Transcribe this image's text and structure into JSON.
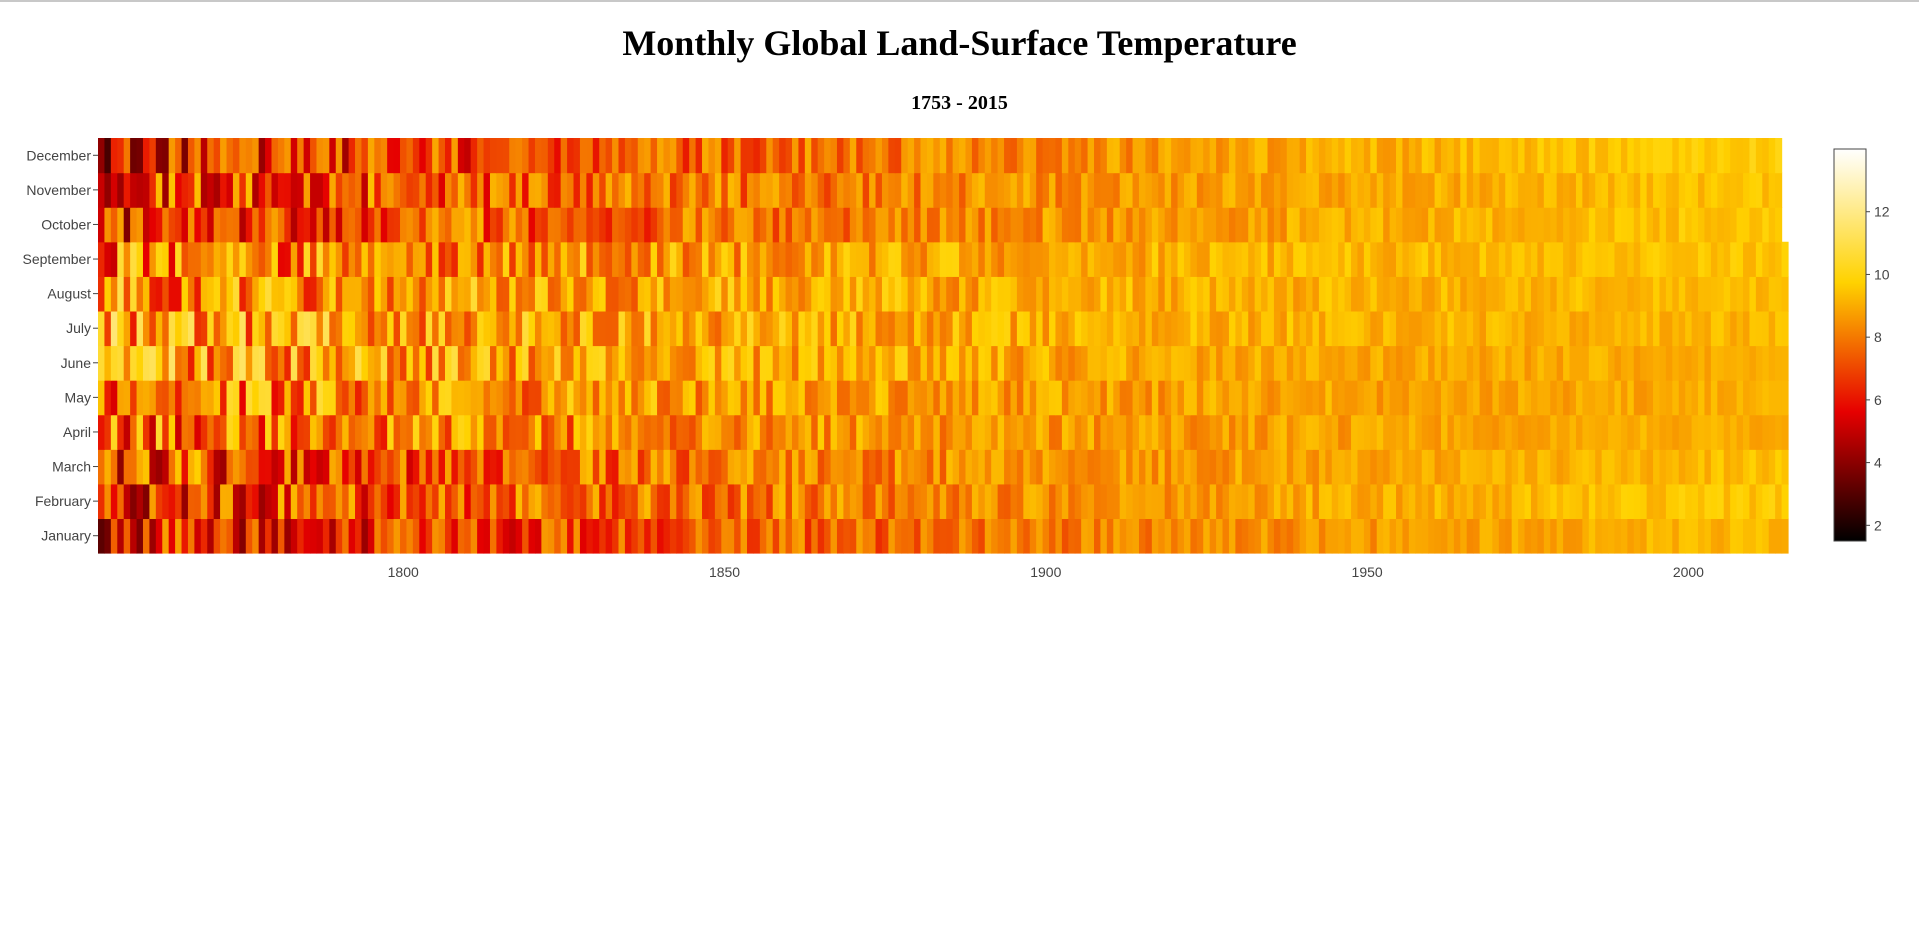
{
  "chart_data": {
    "type": "heatmap",
    "title": "Monthly Global Land-Surface Temperature",
    "subtitle": "1753 - 2015",
    "x_range": [
      1753,
      2015
    ],
    "x_ticks": [
      1800,
      1850,
      1900,
      1950,
      2000
    ],
    "y_categories": [
      "January",
      "February",
      "March",
      "April",
      "May",
      "June",
      "July",
      "August",
      "September",
      "October",
      "November",
      "December"
    ],
    "colorscale": [
      {
        "stop": 0.0,
        "color": "#000000"
      },
      {
        "stop": 0.33,
        "color": "#e60000"
      },
      {
        "stop": 0.66,
        "color": "#ffd200"
      },
      {
        "stop": 1.0,
        "color": "#ffffff"
      }
    ],
    "color_range": [
      1.5,
      14.0
    ],
    "colorbar_ticks": [
      2,
      4,
      6,
      8,
      10,
      12
    ],
    "data_end": {
      "September": 2015,
      "October": 2014,
      "November": 2014,
      "December": 2014
    },
    "monthly_profile": {
      "January": {
        "early": 5.6,
        "late": 9.3
      },
      "February": {
        "early": 6.3,
        "late": 9.6
      },
      "March": {
        "early": 6.6,
        "late": 9.4
      },
      "April": {
        "early": 7.6,
        "late": 9.1
      },
      "May": {
        "early": 8.1,
        "late": 9.0
      },
      "June": {
        "early": 8.8,
        "late": 9.0
      },
      "July": {
        "early": 8.7,
        "late": 9.2
      },
      "August": {
        "early": 8.4,
        "late": 9.3
      },
      "September": {
        "early": 7.9,
        "late": 9.5
      },
      "October": {
        "early": 6.3,
        "late": 9.6
      },
      "November": {
        "early": 6.4,
        "late": 9.5
      },
      "December": {
        "early": 5.7,
        "late": 9.8
      }
    }
  }
}
